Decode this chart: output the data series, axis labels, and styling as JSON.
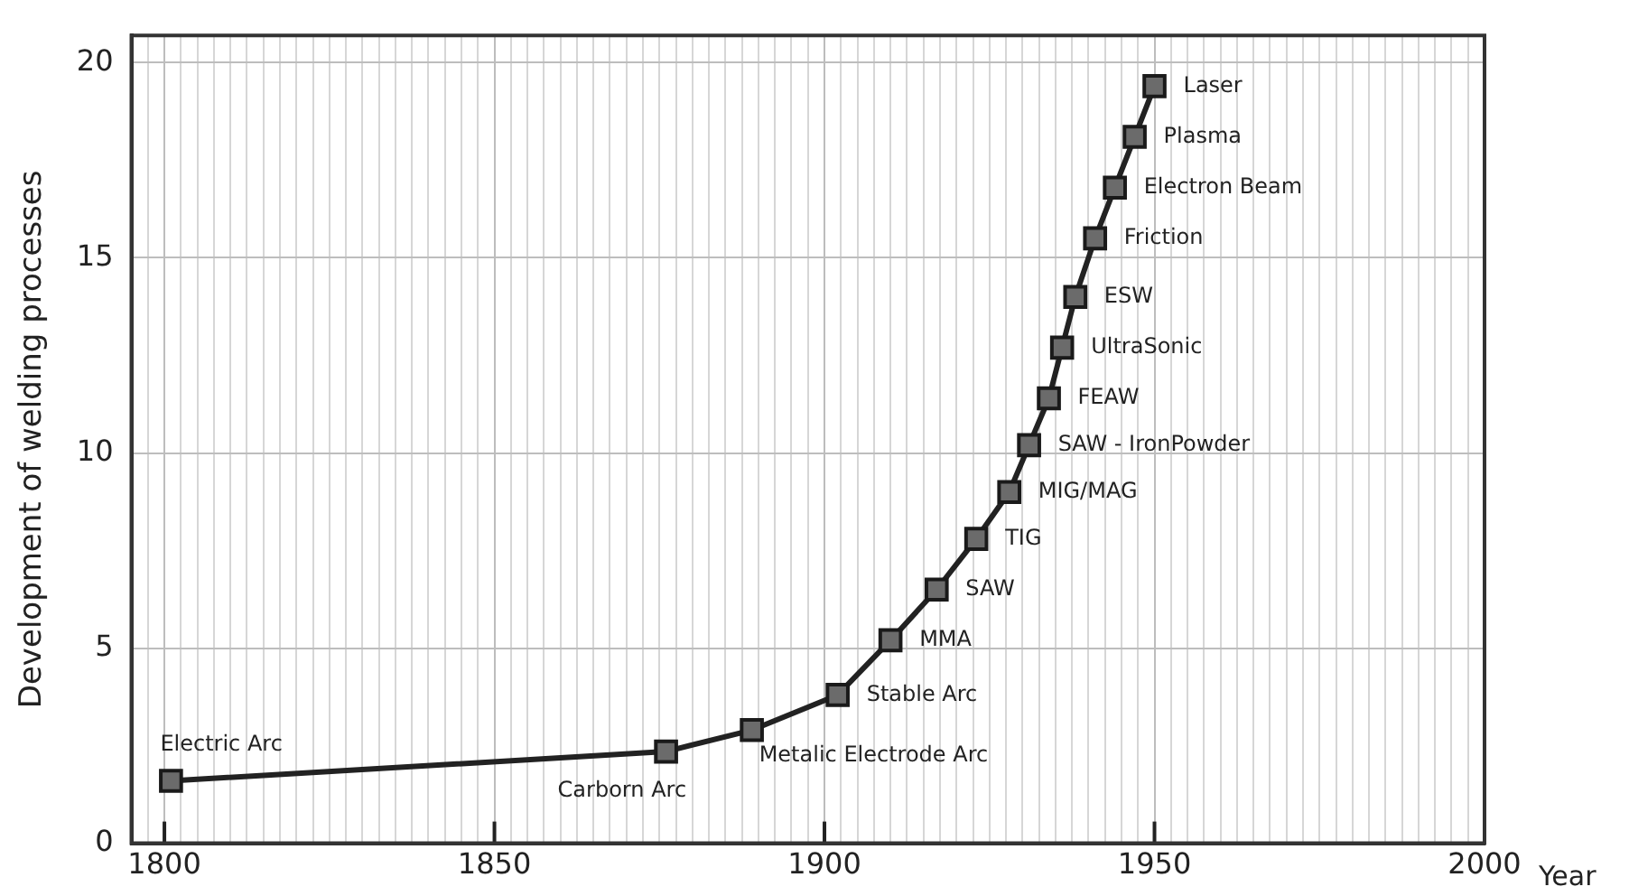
{
  "chart_data": {
    "type": "line",
    "xlabel": "Year",
    "ylabel": "Development of welding processes",
    "x": [
      1801,
      1876,
      1889,
      1902,
      1910,
      1917,
      1923,
      1928,
      1931,
      1934,
      1936,
      1938,
      1941,
      1944,
      1947,
      1950
    ],
    "values": [
      1.6,
      2.35,
      2.9,
      3.8,
      5.2,
      6.5,
      7.8,
      9.0,
      10.2,
      11.4,
      12.7,
      14.0,
      15.5,
      16.8,
      18.1,
      19.4
    ],
    "color": "#222222",
    "marker": "square",
    "line_style": "solid",
    "grid": true,
    "legend": false,
    "xlim": [
      1795,
      2000
    ],
    "xticks": [
      1800,
      1850,
      1900,
      1950,
      2000
    ],
    "ylim": [
      0,
      20.7
    ],
    "yticks": [
      0,
      5,
      10,
      15,
      20
    ],
    "annotations": [
      {
        "text": "Electric Arc",
        "x": 1801,
        "y": 1.6
      },
      {
        "text": "Carborn Arc",
        "x": 1876,
        "y": 2.35
      },
      {
        "text": "Metalic Electrode Arc",
        "x": 1889,
        "y": 2.9
      },
      {
        "text": "Stable Arc",
        "x": 1902,
        "y": 3.8
      },
      {
        "text": "MMA",
        "x": 1910,
        "y": 5.2
      },
      {
        "text": "SAW",
        "x": 1917,
        "y": 6.5
      },
      {
        "text": "TIG",
        "x": 1923,
        "y": 7.8
      },
      {
        "text": "MIG/MAG",
        "x": 1928,
        "y": 9.0
      },
      {
        "text": "SAW - IronPowder",
        "x": 1931,
        "y": 10.2
      },
      {
        "text": "FEAW",
        "x": 1934,
        "y": 11.4
      },
      {
        "text": "UltraSonic",
        "x": 1936,
        "y": 12.7
      },
      {
        "text": "ESW",
        "x": 1938,
        "y": 14.0
      },
      {
        "text": "Friction",
        "x": 1941,
        "y": 15.5
      },
      {
        "text": "Electron Beam",
        "x": 1944,
        "y": 16.8
      },
      {
        "text": "Plasma",
        "x": 1947,
        "y": 18.1
      },
      {
        "text": "Laser",
        "x": 1950,
        "y": 19.4
      }
    ]
  }
}
